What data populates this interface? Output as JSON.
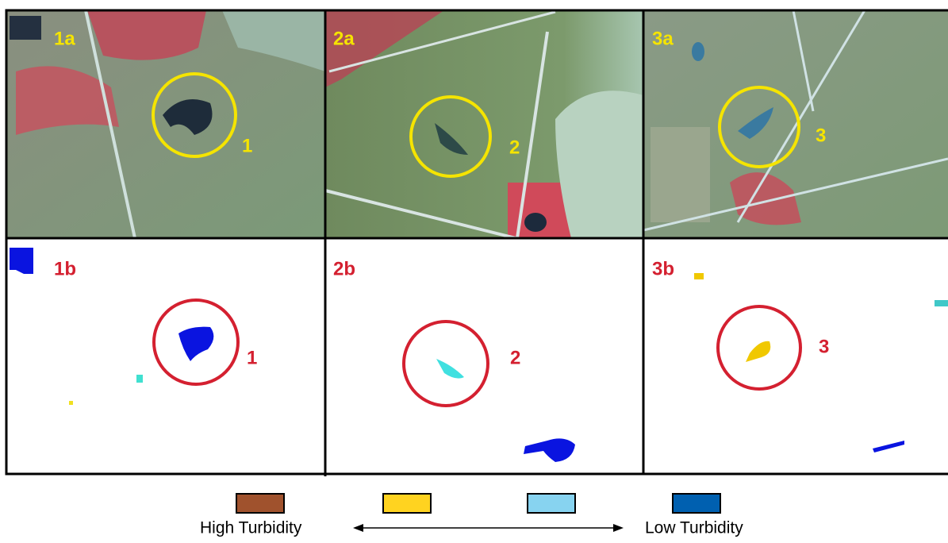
{
  "panels": [
    {
      "label": "1a",
      "marker": "1"
    },
    {
      "label": "2a",
      "marker": "2"
    },
    {
      "label": "3a",
      "marker": "3"
    },
    {
      "label": "1b",
      "marker": "1"
    },
    {
      "label": "2b",
      "marker": "2"
    },
    {
      "label": "3b",
      "marker": "3"
    }
  ],
  "legend": {
    "left": "High Turbidity",
    "right": "Low Turbidity"
  }
}
